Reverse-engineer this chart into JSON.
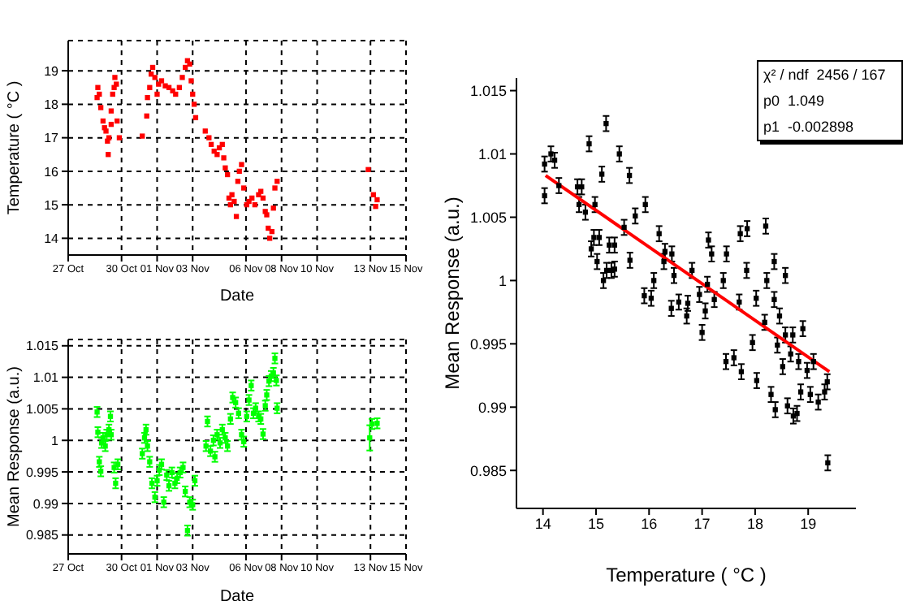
{
  "chart_data": [
    {
      "type": "scatter",
      "xlabel": "Date",
      "ylabel": "Temperature ( °C )",
      "xlim": [
        "--10-27T00:00",
        "--11-15T00:00"
      ],
      "ylim": [
        13.5,
        19.9
      ],
      "xticks": [
        {
          "value": "--10-27",
          "label": "27 Oct"
        },
        {
          "value": "--10-30",
          "label": "30 Oct"
        },
        {
          "value": "--11-01",
          "label": "01 Nov"
        },
        {
          "value": "--11-03",
          "label": "03 Nov"
        },
        {
          "value": "--11-06",
          "label": "06 Nov"
        },
        {
          "value": "--11-08",
          "label": "08 Nov"
        },
        {
          "value": "--11-10",
          "label": "10 Nov"
        },
        {
          "value": "--11-13",
          "label": "13 Nov"
        },
        {
          "value": "--11-15",
          "label": "15 Nov"
        }
      ],
      "yticks": [
        14,
        15,
        16,
        17,
        18,
        19
      ],
      "grid": true,
      "marker": "square",
      "series": [
        {
          "color": "#ff0000",
          "x": [
            "--10-28T15:00",
            "--10-28T16:00",
            "--10-28T18:00",
            "--10-28T20:00",
            "--10-28T23:00",
            "--10-29T01:00",
            "--10-29T03:00",
            "--10-29T05:00",
            "--10-29T06:00",
            "--10-29T07:00",
            "--10-29T10:00",
            "--10-29T10:00",
            "--10-29T12:00",
            "--10-29T14:00",
            "--10-29T15:00",
            "--10-29T17:00",
            "--10-29T18:00",
            "--10-29T21:00",
            "--10-31T04:00",
            "--10-31T10:00",
            "--10-31T11:00",
            "--10-31T14:00",
            "--10-31T16:00",
            "--10-31T18:00",
            "--10-31T21:00",
            "--11-01T00:00",
            "--11-01T02:00",
            "--11-01T06:00",
            "--11-01T11:00",
            "--11-01T16:00",
            "--11-01T21:00",
            "--11-02T01:00",
            "--11-02T06:00",
            "--11-02T10:00",
            "--11-02T14:00",
            "--11-02T17:00",
            "--11-02T20:00",
            "--11-02T22:00",
            "--11-03T00:00",
            "--11-03T02:00",
            "--11-03T04:00",
            "--11-03T17:00",
            "--11-03T22:00",
            "--11-04T01:00",
            "--11-04T05:00",
            "--11-04T09:00",
            "--11-04T12:00",
            "--11-04T16:00",
            "--11-04T18:00",
            "--11-04T20:00",
            "--11-04T23:00",
            "--11-05T01:00",
            "--11-05T03:00",
            "--11-05T05:00",
            "--11-05T08:00",
            "--11-05T11:00",
            "--11-05T13:00",
            "--11-05T15:00",
            "--11-05T18:00",
            "--11-05T21:00",
            "--11-06T01:00",
            "--11-06T04:00",
            "--11-06T08:00",
            "--11-06T12:00",
            "--11-06T17:00",
            "--11-06T20:00",
            "--11-06T23:00",
            "--11-07T02:00",
            "--11-07T04:00",
            "--11-07T06:00",
            "--11-07T08:00",
            "--11-07T11:00",
            "--11-07T13:00",
            "--11-07T15:00",
            "--11-07T18:00",
            "--11-12T21:00",
            "--11-13T04:00",
            "--11-13T07:00",
            "--11-13T09:00"
          ],
          "values": [
            18.2,
            18.5,
            18.3,
            17.9,
            17.5,
            17.3,
            17.2,
            16.9,
            16.5,
            17.0,
            17.4,
            17.8,
            18.3,
            18.5,
            18.8,
            18.6,
            17.5,
            17.0,
            17.05,
            17.65,
            18.2,
            18.5,
            18.9,
            19.1,
            18.8,
            18.3,
            18.6,
            18.7,
            18.55,
            18.5,
            18.4,
            18.3,
            18.5,
            18.8,
            19.1,
            19.3,
            19.2,
            18.7,
            18.3,
            18.0,
            17.6,
            17.2,
            17.0,
            16.8,
            16.6,
            16.5,
            16.7,
            16.8,
            16.4,
            16.1,
            15.9,
            15.2,
            15.0,
            15.3,
            15.1,
            14.65,
            15.7,
            16.0,
            16.2,
            15.5,
            15.0,
            15.1,
            15.2,
            15.0,
            15.3,
            15.4,
            15.2,
            14.8,
            14.7,
            14.3,
            14.0,
            14.2,
            14.9,
            15.5,
            15.7,
            16.05,
            15.3,
            14.95,
            15.15
          ]
        }
      ]
    },
    {
      "type": "scatter",
      "xlabel": "Date",
      "ylabel": "Mean Response (a.u.)",
      "xlim": [
        "--10-27T00:00",
        "--11-15T00:00"
      ],
      "ylim": [
        0.982,
        1.016
      ],
      "xticks": [
        {
          "value": "--10-27",
          "label": "27 Oct"
        },
        {
          "value": "--10-30",
          "label": "30 Oct"
        },
        {
          "value": "--11-01",
          "label": "01 Nov"
        },
        {
          "value": "--11-03",
          "label": "03 Nov"
        },
        {
          "value": "--11-06",
          "label": "06 Nov"
        },
        {
          "value": "--11-08",
          "label": "08 Nov"
        },
        {
          "value": "--11-10",
          "label": "10 Nov"
        },
        {
          "value": "--11-13",
          "label": "13 Nov"
        },
        {
          "value": "--11-15",
          "label": "15 Nov"
        }
      ],
      "yticks": [
        0.985,
        0.99,
        0.995,
        1,
        1.005,
        1.01,
        1.015
      ],
      "grid": true,
      "marker": "square",
      "series": [
        {
          "color": "#00ff00",
          "x": [
            "--10-28T15:00",
            "--10-28T16:00",
            "--10-28T18:00",
            "--10-28T20:00",
            "--10-28T21:00",
            "--10-28T23:00",
            "--10-29T02:00",
            "--10-29T04:00",
            "--10-29T07:00",
            "--10-29T09:00",
            "--10-29T10:00",
            "--10-29T14:00",
            "--10-29T16:00",
            "--10-29T19:00",
            "--10-31T04:00",
            "--10-31T07:00",
            "--10-31T09:00",
            "--10-31T11:00",
            "--10-31T14:00",
            "--10-31T17:00",
            "--10-31T21:00",
            "--11-01T00:00",
            "--11-01T03:00",
            "--11-01T06:00",
            "--11-01T09:00",
            "--11-01T13:00",
            "--11-01T16:00",
            "--11-01T20:00",
            "--11-02T00:00",
            "--11-02T03:00",
            "--11-02T07:00",
            "--11-02T11:00",
            "--11-02T14:00",
            "--11-02T17:00",
            "--11-02T20:00",
            "--11-03T00:00",
            "--11-03T03:00",
            "--11-03T18:00",
            "--11-03T20:00",
            "--11-04T00:00",
            "--11-04T04:00",
            "--11-04T06:00",
            "--11-04T09:00",
            "--11-04T13:00",
            "--11-04T16:00",
            "--11-04T20:00",
            "--11-04T23:00",
            "--11-05T03:00",
            "--11-05T06:00",
            "--11-05T10:00",
            "--11-05T14:00",
            "--11-05T18:00",
            "--11-05T21:00",
            "--11-06T01:00",
            "--11-06T04:00",
            "--11-06T07:00",
            "--11-06T10:00",
            "--11-06T13:00",
            "--11-06T17:00",
            "--11-06T20:00",
            "--11-06T23:00",
            "--11-07T02:00",
            "--11-07T04:00",
            "--11-07T07:00",
            "--11-07T10:00",
            "--11-07T13:00",
            "--11-07T15:00",
            "--11-07T17:00",
            "--11-07T18:00",
            "--11-12T23:00",
            "--11-13T02:00",
            "--11-13T09:00"
          ],
          "values": [
            1.0045,
            1.0013,
            0.9966,
            0.9951,
            0.9996,
            1.0004,
            0.9991,
            1.0009,
            1.0017,
            1.0038,
            1.0009,
            0.9957,
            0.9932,
            0.9962,
            0.9979,
            1.0004,
            1.0017,
            0.9991,
            0.9966,
            0.9932,
            0.991,
            0.9936,
            0.9953,
            0.9962,
            0.9902,
            0.9945,
            0.9928,
            0.9949,
            0.9932,
            0.994,
            0.9949,
            0.9957,
            0.9919,
            0.9857,
            0.9902,
            0.9898,
            0.9936,
            0.9991,
            1.003,
            0.9983,
            1.0,
            0.9974,
            1.0009,
            0.9996,
            1.0017,
            1.0004,
            0.9991,
            1.0034,
            1.0068,
            1.006,
            1.0043,
            1.0009,
            0.9998,
            1.0038,
            1.0064,
            1.0087,
            1.0043,
            1.0051,
            1.0038,
            1.0034,
            1.001,
            1.0055,
            1.0072,
            1.0094,
            1.0102,
            1.0107,
            1.013,
            1.0095,
            1.0051,
            1.0004,
            1.0026,
            1.0027
          ],
          "errors": [
            0.0008,
            0.0008,
            0.0008,
            0.0008,
            0.0008,
            0.0008,
            0.0008,
            0.0008,
            0.0008,
            0.0008,
            0.0008,
            0.0008,
            0.0008,
            0.0008,
            0.0008,
            0.0008,
            0.0008,
            0.0008,
            0.0008,
            0.0008,
            0.0008,
            0.0008,
            0.0008,
            0.0008,
            0.0008,
            0.0008,
            0.0008,
            0.0008,
            0.0008,
            0.0008,
            0.0008,
            0.0008,
            0.0008,
            0.0008,
            0.0008,
            0.0008,
            0.0008,
            0.0008,
            0.0008,
            0.0008,
            0.0008,
            0.0008,
            0.0008,
            0.0008,
            0.0008,
            0.0008,
            0.0008,
            0.0008,
            0.0008,
            0.0008,
            0.0008,
            0.0008,
            0.0008,
            0.0008,
            0.0008,
            0.0008,
            0.0008,
            0.0008,
            0.0008,
            0.0008,
            0.0008,
            0.0008,
            0.0008,
            0.0008,
            0.0008,
            0.0008,
            0.0008,
            0.0008,
            0.0008,
            0.002,
            0.0008,
            0.0008
          ]
        }
      ]
    },
    {
      "type": "scatter",
      "xlabel": "Temperature ( °C )",
      "ylabel": "Mean Response (a.u.)",
      "xlim": [
        13.5,
        19.9
      ],
      "ylim": [
        0.982,
        1.016
      ],
      "xticks": [
        14,
        15,
        16,
        17,
        18,
        19
      ],
      "yticks": [
        0.985,
        0.99,
        0.995,
        1,
        1.005,
        1.01,
        1.015
      ],
      "grid": false,
      "marker": "square",
      "annotations": [
        "χ² / ndf  2456 / 167",
        "p0  1.049",
        "p1  -0.002898"
      ],
      "series": [
        {
          "color": "#000000",
          "x": [
            14.03,
            14.03,
            14.15,
            14.22,
            14.3,
            14.65,
            14.73,
            14.68,
            14.8,
            14.87,
            14.91,
            14.96,
            14.98,
            15.02,
            15.06,
            15.11,
            15.14,
            15.19,
            15.2,
            15.25,
            15.29,
            15.35,
            15.44,
            15.53,
            15.63,
            15.64,
            15.74,
            15.93,
            16.19,
            16.3,
            16.43,
            17.12,
            17.18,
            17.46,
            17.72,
            17.85,
            18.2,
            18.36,
            18.57,
            15.35,
            15.91,
            16.04,
            16.09,
            16.28,
            16.42,
            16.47,
            16.56,
            16.71,
            16.73,
            16.81,
            16.95,
            17.0,
            17.06,
            17.1,
            17.23,
            17.4,
            17.45,
            17.6,
            17.7,
            17.74,
            17.84,
            17.95,
            18.02,
            18.03,
            18.18,
            18.22,
            18.3,
            18.36,
            18.38,
            18.42,
            18.46,
            18.52,
            18.57,
            18.61,
            18.67,
            18.71,
            18.72,
            18.79,
            18.82,
            18.86,
            18.9,
            18.98,
            19.04,
            19.1,
            19.19,
            19.31,
            19.36,
            19.37
          ],
          "values": [
            1.0092,
            1.0067,
            1.01,
            1.0095,
            1.0075,
            1.0074,
            1.0074,
            1.006,
            1.0054,
            1.0108,
            1.0025,
            1.0034,
            1.006,
            1.0015,
            1.0034,
            1.0084,
            1.0,
            1.0124,
            1.0008,
            1.0028,
            1.0008,
            1.0028,
            1.01,
            1.0042,
            1.0083,
            1.0016,
            1.0051,
            1.006,
            1.0037,
            1.0023,
            1.0021,
            1.0032,
            1.0021,
            1.0021,
            1.0037,
            1.0041,
            1.0043,
            1.0015,
            1.0004,
            1.0009,
            0.9988,
            0.9986,
            1.0,
            1.0015,
            0.9978,
            1.0004,
            0.9983,
            0.9972,
            0.9982,
            1.0008,
            0.9989,
            0.9959,
            0.9976,
            0.9997,
            0.9985,
            1.0,
            0.9936,
            0.9939,
            0.9983,
            0.9928,
            1.0008,
            0.9951,
            0.9986,
            0.9921,
            0.9967,
            1.0,
            0.991,
            0.9985,
            0.9898,
            0.9949,
            0.9972,
            0.9932,
            0.9957,
            0.9901,
            0.9942,
            0.9957,
            0.9893,
            0.9895,
            0.9936,
            0.9912,
            0.9962,
            0.9929,
            0.991,
            0.9936,
            0.9904,
            0.9912,
            0.992,
            0.9856
          ],
          "errors": [
            0.0006,
            0.0006,
            0.0006,
            0.0006,
            0.0006,
            0.0006,
            0.0006,
            0.0006,
            0.0006,
            0.0006,
            0.0006,
            0.0006,
            0.0006,
            0.0006,
            0.0006,
            0.0006,
            0.0006,
            0.0006,
            0.0006,
            0.0006,
            0.0006,
            0.0006,
            0.0006,
            0.0006,
            0.0006,
            0.0006,
            0.0006,
            0.0006,
            0.0006,
            0.0006,
            0.0006,
            0.0006,
            0.0006,
            0.0006,
            0.0006,
            0.0006,
            0.0006,
            0.0006,
            0.0006,
            0.0006,
            0.0006,
            0.0006,
            0.0006,
            0.0006,
            0.0006,
            0.0006,
            0.0006,
            0.0006,
            0.0006,
            0.0006,
            0.0006,
            0.0006,
            0.0006,
            0.0006,
            0.0006,
            0.0006,
            0.0006,
            0.0006,
            0.0006,
            0.0006,
            0.0006,
            0.0006,
            0.0006,
            0.0006,
            0.0006,
            0.0006,
            0.0006,
            0.0006,
            0.0006,
            0.0006,
            0.0006,
            0.0006,
            0.0006,
            0.0006,
            0.0006,
            0.0006,
            0.0006,
            0.0006,
            0.0006,
            0.0006,
            0.0006,
            0.0006,
            0.0006,
            0.0006,
            0.0006,
            0.0006,
            0.0006,
            0.0006
          ]
        },
        {
          "type": "line",
          "color": "#ff0000",
          "marker": "none",
          "x": [
            14.05,
            19.4
          ],
          "values": [
            1.0083,
            0.9928
          ]
        }
      ]
    }
  ]
}
